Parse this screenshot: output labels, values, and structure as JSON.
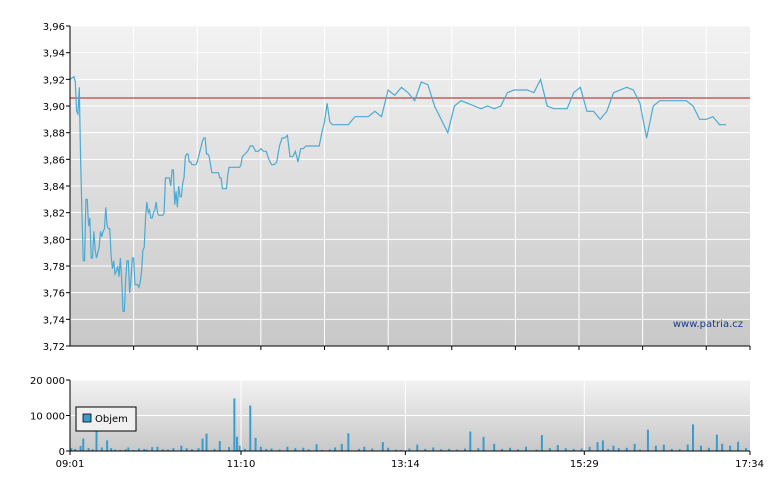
{
  "watermark": "www.patria.cz",
  "colors": {
    "price_line": "#4aaad2",
    "reference_line": "#b01818",
    "volume_bar": "#3a9ccc",
    "grid": "#ffffff",
    "axis": "#000000",
    "bg_top": "#f2f2f2",
    "bg_bottom": "#c8c8c8"
  },
  "chart_data": [
    {
      "type": "line",
      "x_range": [
        "09:01",
        "17:34"
      ],
      "x_ticks": [
        "09:01",
        "11:10",
        "13:14",
        "15:29",
        "17:34"
      ],
      "ylim": [
        3.72,
        3.96
      ],
      "y_ticks": [
        "3,72",
        "3,74",
        "3,76",
        "3,78",
        "3,80",
        "3,82",
        "3,84",
        "3,86",
        "3,88",
        "3,90",
        "3,92",
        "3,94",
        "3,96"
      ],
      "grid": true,
      "reference_value": 3.906,
      "x_minutes_from_open": [
        0,
        3,
        4,
        5,
        6,
        7,
        8,
        9,
        10,
        11,
        12,
        13,
        14,
        15,
        16,
        17,
        18,
        19,
        20,
        21,
        22,
        23,
        24,
        25,
        26,
        27,
        28,
        29,
        30,
        31,
        32,
        33,
        34,
        35,
        36,
        37,
        38,
        39,
        40,
        41,
        42,
        43,
        44,
        45,
        46,
        47,
        48,
        49,
        50,
        51,
        52,
        53,
        54,
        55,
        56,
        57,
        58,
        59,
        60,
        61,
        62,
        63,
        64,
        65,
        66,
        67,
        68,
        69,
        70,
        71,
        72,
        73,
        74,
        75,
        76,
        77,
        78,
        79,
        80,
        81,
        82,
        83,
        84,
        85,
        86,
        87,
        88,
        89,
        90,
        91,
        92,
        93,
        94,
        95,
        96,
        97,
        98,
        99,
        100,
        101,
        102,
        103,
        104,
        105,
        106,
        107,
        108,
        109,
        110,
        111,
        112,
        113,
        114,
        115,
        116,
        117,
        118,
        119,
        120,
        121,
        122,
        123,
        124,
        125,
        126,
        127,
        128,
        129,
        130,
        132,
        134,
        136,
        138,
        140,
        142,
        144,
        146,
        148,
        150,
        152,
        154,
        156,
        158,
        160,
        162,
        164,
        166,
        168,
        170,
        172,
        174,
        176,
        178,
        180,
        182,
        184,
        186,
        188,
        190,
        192,
        194,
        196,
        198,
        200,
        205,
        210,
        215,
        220,
        225,
        230,
        235,
        240,
        245,
        250,
        255,
        260,
        265,
        270,
        275,
        280,
        285,
        290,
        295,
        300,
        305,
        310,
        315,
        320,
        325,
        330,
        335,
        340,
        345,
        350,
        355,
        360,
        365,
        370,
        375,
        380,
        385,
        390,
        395,
        400,
        405,
        410,
        415,
        420,
        425,
        430,
        435,
        440,
        445,
        450,
        455,
        460,
        465,
        470,
        475,
        480,
        485,
        490,
        495,
        500,
        505,
        510,
        513
      ],
      "values": [
        3.92,
        3.922,
        3.918,
        3.896,
        3.894,
        3.914,
        3.86,
        3.82,
        3.784,
        3.784,
        3.83,
        3.83,
        3.81,
        3.816,
        3.786,
        3.786,
        3.806,
        3.792,
        3.786,
        3.79,
        3.794,
        3.806,
        3.802,
        3.806,
        3.808,
        3.824,
        3.81,
        3.808,
        3.808,
        3.788,
        3.778,
        3.784,
        3.774,
        3.776,
        3.78,
        3.772,
        3.786,
        3.77,
        3.746,
        3.746,
        3.77,
        3.784,
        3.784,
        3.76,
        3.77,
        3.786,
        3.786,
        3.766,
        3.766,
        3.766,
        3.764,
        3.768,
        3.776,
        3.792,
        3.794,
        3.816,
        3.828,
        3.82,
        3.822,
        3.816,
        3.816,
        3.82,
        3.822,
        3.828,
        3.82,
        3.818,
        3.818,
        3.818,
        3.818,
        3.82,
        3.846,
        3.846,
        3.846,
        3.846,
        3.84,
        3.852,
        3.852,
        3.826,
        3.836,
        3.824,
        3.84,
        3.832,
        3.832,
        3.842,
        3.846,
        3.862,
        3.864,
        3.864,
        3.858,
        3.858,
        3.856,
        3.856,
        3.856,
        3.856,
        3.858,
        3.862,
        3.866,
        3.87,
        3.874,
        3.876,
        3.876,
        3.864,
        3.864,
        3.862,
        3.856,
        3.85,
        3.85,
        3.85,
        3.85,
        3.85,
        3.85,
        3.846,
        3.846,
        3.838,
        3.838,
        3.838,
        3.838,
        3.848,
        3.854,
        3.854,
        3.854,
        3.854,
        3.854,
        3.854,
        3.854,
        3.854,
        3.854,
        3.856,
        3.862,
        3.864,
        3.866,
        3.87,
        3.87,
        3.866,
        3.866,
        3.868,
        3.866,
        3.866,
        3.86,
        3.856,
        3.856,
        3.858,
        3.87,
        3.876,
        3.876,
        3.878,
        3.862,
        3.862,
        3.866,
        3.858,
        3.868,
        3.868,
        3.87,
        3.87,
        3.87,
        3.87,
        3.87,
        3.87,
        3.88,
        3.888,
        3.902,
        3.888,
        3.886,
        3.886,
        3.886,
        3.886,
        3.892,
        3.892,
        3.892,
        3.896,
        3.892,
        3.912,
        3.908,
        3.914,
        3.91,
        3.904,
        3.918,
        3.916,
        3.9,
        3.89,
        3.88,
        3.9,
        3.904,
        3.902,
        3.9,
        3.898,
        3.9,
        3.898,
        3.9,
        3.91,
        3.912,
        3.912,
        3.912,
        3.91,
        3.92,
        3.9,
        3.898,
        3.898,
        3.898,
        3.91,
        3.914,
        3.896,
        3.896,
        3.89,
        3.896,
        3.91,
        3.912,
        3.914,
        3.912,
        3.902,
        3.876,
        3.9,
        3.904,
        3.904,
        3.904,
        3.904,
        3.904,
        3.9,
        3.89,
        3.89,
        3.892,
        3.886,
        3.886
      ]
    },
    {
      "type": "bar",
      "legend": [
        "Objem"
      ],
      "x_range": [
        "09:01",
        "17:34"
      ],
      "x_ticks": [
        "09:01",
        "11:10",
        "13:14",
        "15:29",
        "17:34"
      ],
      "ylim": [
        0,
        20000
      ],
      "y_ticks": [
        "0",
        "10 000",
        "20 000"
      ],
      "grid": true,
      "x_minutes_from_open": [
        1,
        4,
        8,
        10,
        14,
        17,
        20,
        24,
        28,
        31,
        34,
        38,
        42,
        44,
        48,
        52,
        56,
        58,
        62,
        66,
        70,
        74,
        78,
        84,
        88,
        92,
        97,
        100,
        103,
        109,
        113,
        120,
        124,
        126,
        128,
        132,
        136,
        140,
        144,
        148,
        152,
        158,
        164,
        170,
        176,
        180,
        186,
        190,
        196,
        200,
        205,
        210,
        218,
        222,
        228,
        236,
        240,
        246,
        250,
        256,
        262,
        268,
        274,
        280,
        286,
        292,
        298,
        302,
        308,
        312,
        320,
        326,
        332,
        338,
        344,
        352,
        356,
        362,
        368,
        374,
        380,
        386,
        392,
        398,
        402,
        406,
        410,
        414,
        420,
        426,
        430,
        436,
        442,
        448,
        454,
        460,
        466,
        470,
        476,
        482,
        488,
        492,
        498,
        504,
        510
      ],
      "values": [
        800,
        600,
        1400,
        3500,
        800,
        500,
        6800,
        1000,
        3000,
        800,
        400,
        300,
        500,
        1000,
        300,
        700,
        600,
        400,
        1100,
        1200,
        500,
        400,
        800,
        1500,
        800,
        500,
        800,
        3500,
        4900,
        600,
        2800,
        1100,
        14800,
        4000,
        1500,
        600,
        12800,
        3700,
        1200,
        600,
        700,
        400,
        1200,
        800,
        900,
        500,
        1900,
        300,
        400,
        1000,
        2000,
        5000,
        600,
        1200,
        700,
        2500,
        900,
        400,
        300,
        700,
        1800,
        600,
        1000,
        500,
        600,
        400,
        700,
        5500,
        800,
        4000,
        2000,
        600,
        900,
        500,
        1200,
        400,
        4500,
        800,
        1700,
        800,
        600,
        700,
        1200,
        2500,
        3000,
        600,
        1500,
        800,
        900,
        2000,
        400,
        6000,
        1500,
        1800,
        600,
        500,
        1800,
        7500,
        1500,
        900,
        4600,
        2000,
        1500,
        2600,
        800
      ]
    }
  ]
}
